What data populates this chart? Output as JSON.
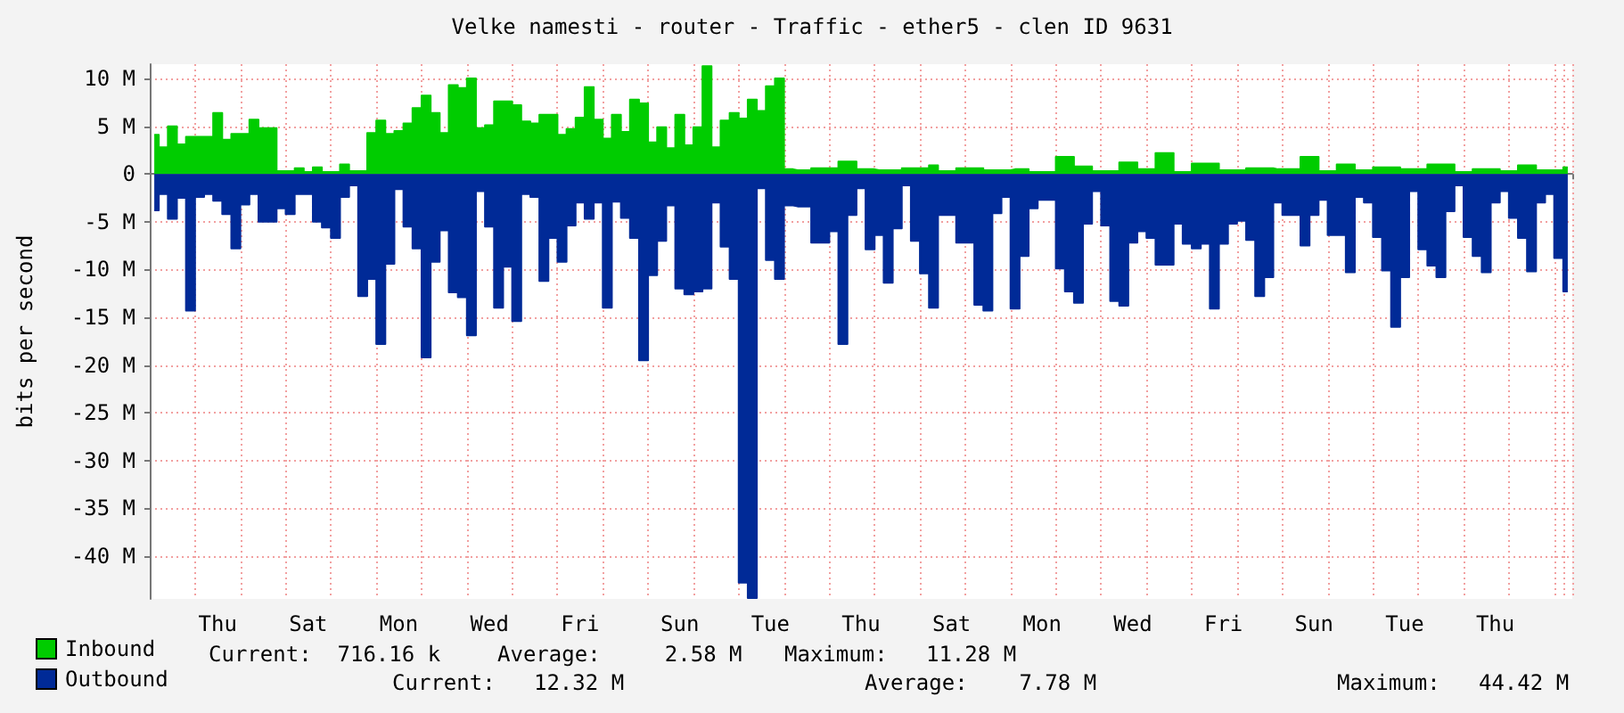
{
  "chart_data": {
    "type": "area",
    "title": "Velke namesti - router - Traffic - ether5 - clen ID 9631",
    "ylabel": "bits per second",
    "categories": [
      null,
      null,
      null,
      null,
      null,
      null,
      null,
      "Thu",
      null,
      null,
      null,
      null,
      null,
      null,
      null,
      null,
      null,
      "Sat",
      null,
      null,
      null,
      null,
      null,
      null,
      null,
      null,
      null,
      "Mon",
      null,
      null,
      null,
      null,
      null,
      null,
      null,
      null,
      null,
      "Wed",
      null,
      null,
      null,
      null,
      null,
      null,
      null,
      null,
      null,
      "Fri",
      null,
      null,
      null,
      null,
      null,
      null,
      null,
      null,
      null,
      null,
      "Sun",
      null,
      null,
      null,
      null,
      null,
      null,
      null,
      null,
      null,
      "Tue",
      null,
      null,
      null,
      null,
      null,
      null,
      null,
      null,
      null,
      "Thu",
      null,
      null,
      null,
      null,
      null,
      null,
      null,
      null,
      null,
      "Sat",
      null,
      null,
      null,
      null,
      null,
      null,
      null,
      null,
      null,
      "Mon",
      null,
      null,
      null,
      null,
      null,
      null,
      null,
      null,
      null,
      "Wed",
      null,
      null,
      null,
      null,
      null,
      null,
      null,
      null,
      null,
      "Fri",
      null,
      null,
      null,
      null,
      null,
      null,
      null,
      null,
      null,
      "Sun",
      null,
      null,
      null,
      null,
      null,
      null,
      null,
      null,
      null,
      "Tue",
      null,
      null,
      null,
      null,
      null,
      null,
      null,
      null,
      null,
      "Thu",
      null,
      null,
      null,
      null,
      null,
      null,
      null,
      null
    ],
    "ylim": [
      -44.5,
      11.5
    ],
    "yticks": [
      {
        "value": -40,
        "label": "-40 M"
      },
      {
        "value": -35,
        "label": "-35 M"
      },
      {
        "value": -30,
        "label": "-30 M"
      },
      {
        "value": -25,
        "label": "-25 M"
      },
      {
        "value": -20,
        "label": "-20 M"
      },
      {
        "value": -15,
        "label": "-15 M"
      },
      {
        "value": -10,
        "label": "-10 M"
      },
      {
        "value": -5,
        "label": "-5 M"
      },
      0,
      {
        "value": 5,
        "label": "5 M"
      },
      {
        "value": 10,
        "label": "10 M"
      }
    ],
    "grid": true,
    "legend": "bottom left",
    "line_style": "solid",
    "annotations": [
      "Current:  716.16 k",
      "Average:     2.58 M",
      "Maximum:   11.28 M",
      "Current:   12.32 M",
      "Average:    7.78 M",
      "Maximum:   44.42 M"
    ],
    "series": [
      {
        "name": "Inbound",
        "color": "#00cc00",
        "values": [
          4.1,
          2.8,
          5.0,
          3.1,
          3.9,
          3.9,
          3.9,
          6.4,
          3.6,
          4.2,
          4.2,
          5.7,
          4.8,
          4.8,
          0.3,
          0.3,
          0.6,
          0.2,
          0.7,
          0.2,
          0.2,
          1.0,
          0.3,
          0.3,
          4.3,
          5.6,
          4.2,
          4.5,
          5.3,
          6.9,
          8.2,
          6.4,
          4.3,
          9.3,
          9.0,
          10.0,
          4.8,
          5.1,
          7.6,
          7.6,
          7.2,
          5.5,
          5.3,
          6.2,
          6.2,
          4.1,
          4.7,
          5.9,
          9.1,
          5.7,
          3.7,
          6.2,
          4.4,
          7.8,
          7.4,
          3.3,
          4.9,
          2.7,
          6.2,
          3.0,
          4.9,
          11.3,
          2.8,
          5.6,
          6.4,
          5.8,
          7.8,
          6.6,
          9.2,
          10.0,
          0.5,
          0.4,
          0.4,
          0.6,
          0.6,
          0.6,
          1.3,
          1.3,
          0.5,
          0.5,
          0.4,
          0.4,
          0.4,
          0.6,
          0.6,
          0.6,
          0.9,
          0.3,
          0.3,
          0.6,
          0.6,
          0.6,
          0.4,
          0.4,
          0.4,
          0.5,
          0.5,
          0.2,
          0.2,
          0.2,
          1.8,
          1.8,
          0.8,
          0.8,
          0.3,
          0.3,
          0.3,
          1.2,
          1.2,
          0.5,
          0.5,
          2.2,
          2.2,
          0.2,
          0.2,
          1.1,
          1.1,
          1.1,
          0.4,
          0.4,
          0.4,
          0.6,
          0.6,
          0.6,
          0.5,
          0.5,
          0.5,
          1.8,
          1.8,
          0.3,
          0.3,
          1.0,
          1.0,
          0.4,
          0.4,
          0.7,
          0.7,
          0.7,
          0.5,
          0.5,
          0.5,
          1.0,
          1.0,
          1.0,
          0.2,
          0.2,
          0.5,
          0.5,
          0.5,
          0.3,
          0.3,
          0.9,
          0.9,
          0.4,
          0.4,
          0.4,
          0.7
        ]
      },
      {
        "name": "Outbound",
        "color": "#002a97",
        "values": [
          -3.8,
          -2.1,
          -4.7,
          -2.5,
          -14.3,
          -2.4,
          -2.1,
          -2.8,
          -4.2,
          -7.8,
          -3.2,
          -2.1,
          -5.0,
          -5.0,
          -3.6,
          -4.2,
          -2.1,
          -2.1,
          -5.0,
          -5.6,
          -6.7,
          -2.4,
          -1.2,
          -12.8,
          -11.0,
          -17.8,
          -9.4,
          -1.6,
          -5.5,
          -7.8,
          -19.2,
          -9.2,
          -5.9,
          -12.4,
          -12.9,
          -16.9,
          -1.8,
          -5.5,
          -14.0,
          -9.7,
          -15.4,
          -2.1,
          -2.4,
          -11.2,
          -6.7,
          -9.2,
          -5.4,
          -3.0,
          -4.7,
          -3.0,
          -14.0,
          -2.9,
          -4.6,
          -6.7,
          -19.5,
          -10.6,
          -7.0,
          -3.3,
          -12.0,
          -12.6,
          -12.3,
          -12.0,
          -3.0,
          -7.6,
          -11.0,
          -42.8,
          -44.4,
          -1.5,
          -9.0,
          -11.0,
          -3.3,
          -3.4,
          -3.4,
          -7.2,
          -7.2,
          -6.0,
          -17.8,
          -4.3,
          -1.5,
          -7.9,
          -6.4,
          -11.4,
          -5.7,
          -1.2,
          -7.0,
          -10.4,
          -14.0,
          -4.3,
          -4.3,
          -7.2,
          -7.2,
          -13.7,
          -14.3,
          -4.1,
          -2.4,
          -14.1,
          -8.6,
          -3.6,
          -2.7,
          -2.7,
          -9.9,
          -12.3,
          -13.5,
          -5.2,
          -1.8,
          -5.4,
          -13.3,
          -13.8,
          -7.2,
          -6.0,
          -6.7,
          -9.5,
          -9.5,
          -5.2,
          -7.3,
          -7.8,
          -7.3,
          -14.1,
          -7.3,
          -5.2,
          -4.9,
          -6.9,
          -12.8,
          -10.8,
          -3.0,
          -4.3,
          -4.3,
          -7.5,
          -4.3,
          -2.7,
          -6.4,
          -6.4,
          -10.3,
          -2.4,
          -3.0,
          -6.6,
          -10.1,
          -16.0,
          -10.8,
          -1.8,
          -7.9,
          -9.6,
          -10.8,
          -3.9,
          -1.2,
          -6.6,
          -8.6,
          -10.3,
          -3.0,
          -1.8,
          -4.6,
          -6.7,
          -10.2,
          -3.0,
          -2.1,
          -8.8,
          -12.3
        ]
      }
    ]
  }
}
